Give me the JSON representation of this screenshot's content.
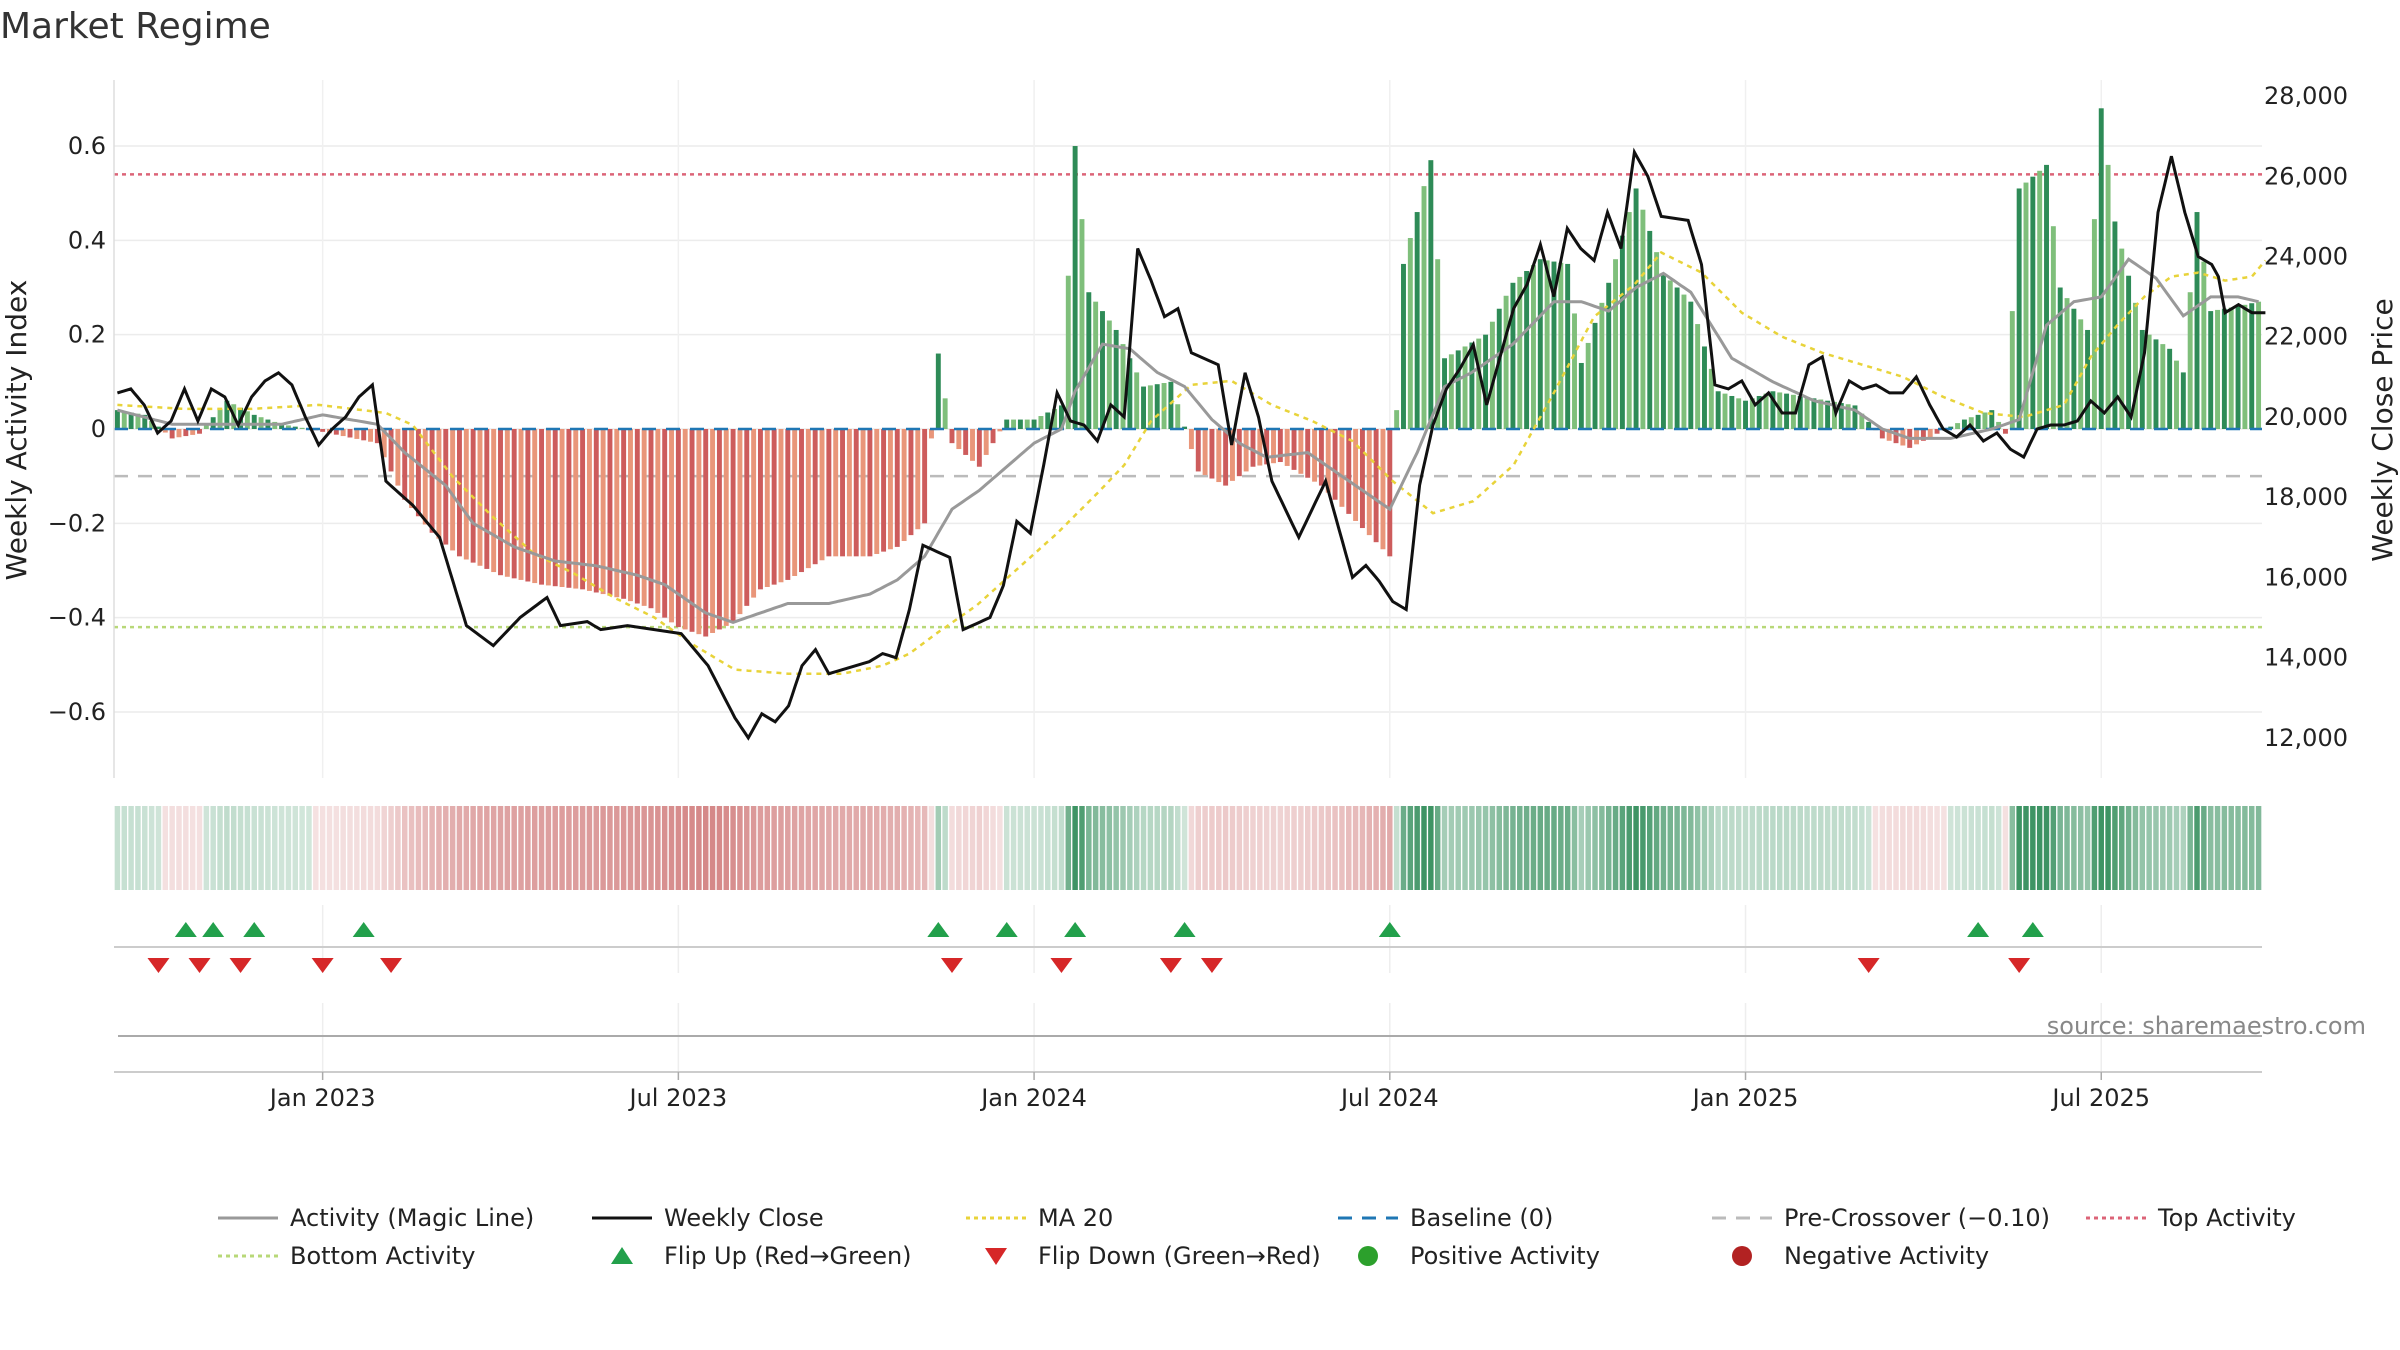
{
  "title": "Market Regime",
  "source": "source: sharemaestro.com",
  "colors": {
    "bar_green_strong": "#2e8b57",
    "bar_green_light": "#7fbf7b",
    "bar_red_strong": "#cd5c5c",
    "bar_red_light": "#e9967a",
    "magic_line": "#999999",
    "weekly_close": "#111111",
    "ma20": "#e8d33a",
    "baseline": "#1f77b4",
    "pre_crossover": "#bbbbbb",
    "top_activity": "#dc6478",
    "bottom_activity": "#b8d878",
    "flip_up": "#22a04b",
    "flip_down": "#d62728",
    "positive": "#2ca02c",
    "negative": "#b22222"
  },
  "legend": [
    {
      "key": "magic",
      "label": "Activity (Magic Line)",
      "kind": "line",
      "color": "#999999",
      "dash": ""
    },
    {
      "key": "close",
      "label": "Weekly Close",
      "kind": "line",
      "color": "#111111",
      "dash": ""
    },
    {
      "key": "ma20",
      "label": "MA 20",
      "kind": "line",
      "color": "#e8d33a",
      "dash": "4,4"
    },
    {
      "key": "baseline",
      "label": "Baseline (0)",
      "kind": "line",
      "color": "#1f77b4",
      "dash": "14,10"
    },
    {
      "key": "pre",
      "label": "Pre-Crossover (−0.10)",
      "kind": "line",
      "color": "#bbbbbb",
      "dash": "14,10"
    },
    {
      "key": "top",
      "label": "Top Activity",
      "kind": "line",
      "color": "#dc6478",
      "dash": "4,4"
    },
    {
      "key": "bottom",
      "label": "Bottom Activity",
      "kind": "line",
      "color": "#b8d878",
      "dash": "4,4"
    },
    {
      "key": "flipup",
      "label": "Flip Up (Red→Green)",
      "kind": "tri-up",
      "color": "#22a04b"
    },
    {
      "key": "flipdown",
      "label": "Flip Down (Green→Red)",
      "kind": "tri-down",
      "color": "#d62728"
    },
    {
      "key": "pos",
      "label": "Positive Activity",
      "kind": "dot",
      "color": "#2ca02c"
    },
    {
      "key": "neg",
      "label": "Negative Activity",
      "kind": "dot",
      "color": "#b22222"
    }
  ],
  "chart_data": {
    "type": "bar",
    "title": "Market Regime",
    "y_left_label": "Weekly Activity Index",
    "y_right_label": "Weekly Close Price",
    "y_left_ticks": [
      {
        "v": 0.6,
        "t": "0.6"
      },
      {
        "v": 0.4,
        "t": "0.4"
      },
      {
        "v": 0.2,
        "t": "0.2"
      },
      {
        "v": 0,
        "t": "0"
      },
      {
        "v": -0.2,
        "t": "−0.2"
      },
      {
        "v": -0.4,
        "t": "−0.4"
      },
      {
        "v": -0.6,
        "t": "−0.6"
      }
    ],
    "y_right_ticks": [
      {
        "v": 28000,
        "t": "28,000"
      },
      {
        "v": 26000,
        "t": "26,000"
      },
      {
        "v": 24000,
        "t": "24,000"
      },
      {
        "v": 22000,
        "t": "22,000"
      },
      {
        "v": 20000,
        "t": "20,000"
      },
      {
        "v": 18000,
        "t": "18,000"
      },
      {
        "v": 16000,
        "t": "16,000"
      },
      {
        "v": 14000,
        "t": "14,000"
      },
      {
        "v": 12000,
        "t": "12,000"
      }
    ],
    "y_left_range": [
      -0.74,
      0.74
    ],
    "y_right_range": [
      11000,
      28400
    ],
    "x_ticks": [
      {
        "v": 30,
        "t": "Jan 2023"
      },
      {
        "v": 82,
        "t": "Jul 2023"
      },
      {
        "v": 134,
        "t": "Jan 2024"
      },
      {
        "v": 186,
        "t": "Jul 2024"
      },
      {
        "v": 238,
        "t": "Jan 2025"
      },
      {
        "v": 290,
        "t": "Jul 2025"
      }
    ],
    "week_count": 314,
    "levels": {
      "top": 0.54,
      "bottom": -0.42,
      "pre_crossover": -0.1,
      "baseline": 0
    },
    "flip_up_weeks": [
      10,
      14,
      20,
      36,
      120,
      130,
      140,
      156,
      186,
      272,
      280
    ],
    "flip_down_weeks": [
      6,
      12,
      18,
      30,
      40,
      122,
      138,
      154,
      160,
      256,
      278
    ],
    "activity_keys": [
      [
        0,
        0.04
      ],
      [
        4,
        0.03
      ],
      [
        8,
        -0.02
      ],
      [
        12,
        -0.01
      ],
      [
        16,
        0.06
      ],
      [
        20,
        0.03
      ],
      [
        24,
        0.01
      ],
      [
        28,
        0
      ],
      [
        38,
        -0.03
      ],
      [
        42,
        -0.15
      ],
      [
        46,
        -0.22
      ],
      [
        50,
        -0.27
      ],
      [
        56,
        -0.31
      ],
      [
        62,
        -0.33
      ],
      [
        68,
        -0.34
      ],
      [
        74,
        -0.36
      ],
      [
        78,
        -0.38
      ],
      [
        82,
        -0.42
      ],
      [
        86,
        -0.44
      ],
      [
        90,
        -0.41
      ],
      [
        94,
        -0.34
      ],
      [
        98,
        -0.32
      ],
      [
        104,
        -0.27
      ],
      [
        110,
        -0.27
      ],
      [
        114,
        -0.25
      ],
      [
        118,
        -0.2
      ],
      [
        120,
        0.16
      ],
      [
        122,
        -0.03
      ],
      [
        126,
        -0.08
      ],
      [
        130,
        0.02
      ],
      [
        134,
        0.02
      ],
      [
        138,
        0.05
      ],
      [
        140,
        0.6
      ],
      [
        142,
        0.29
      ],
      [
        146,
        0.21
      ],
      [
        150,
        0.09
      ],
      [
        154,
        0.1
      ],
      [
        158,
        -0.09
      ],
      [
        162,
        -0.12
      ],
      [
        166,
        -0.08
      ],
      [
        170,
        -0.07
      ],
      [
        176,
        -0.12
      ],
      [
        182,
        -0.21
      ],
      [
        186,
        -0.27
      ],
      [
        188,
        0.35
      ],
      [
        192,
        0.57
      ],
      [
        194,
        0.15
      ],
      [
        200,
        0.2
      ],
      [
        204,
        0.31
      ],
      [
        208,
        0.36
      ],
      [
        212,
        0.35
      ],
      [
        214,
        0.14
      ],
      [
        218,
        0.31
      ],
      [
        222,
        0.51
      ],
      [
        226,
        0.33
      ],
      [
        230,
        0.27
      ],
      [
        234,
        0.08
      ],
      [
        238,
        0.06
      ],
      [
        242,
        0.08
      ],
      [
        246,
        0.07
      ],
      [
        250,
        0.06
      ],
      [
        254,
        0.05
      ],
      [
        258,
        -0.02
      ],
      [
        262,
        -0.04
      ],
      [
        266,
        -0.01
      ],
      [
        270,
        0.02
      ],
      [
        274,
        0.04
      ],
      [
        276,
        -0.01
      ],
      [
        278,
        0.51
      ],
      [
        282,
        0.56
      ],
      [
        284,
        0.3
      ],
      [
        288,
        0.21
      ],
      [
        290,
        0.68
      ],
      [
        292,
        0.44
      ],
      [
        296,
        0.21
      ],
      [
        300,
        0.17
      ],
      [
        302,
        0.12
      ],
      [
        304,
        0.46
      ],
      [
        306,
        0.25
      ],
      [
        310,
        0.26
      ],
      [
        313,
        0.27
      ]
    ],
    "magic_keys": [
      [
        0,
        0.04
      ],
      [
        8,
        0.01
      ],
      [
        16,
        0.01
      ],
      [
        24,
        0.01
      ],
      [
        30,
        0.03
      ],
      [
        38,
        0.01
      ],
      [
        42,
        -0.05
      ],
      [
        48,
        -0.12
      ],
      [
        52,
        -0.2
      ],
      [
        58,
        -0.25
      ],
      [
        64,
        -0.28
      ],
      [
        70,
        -0.29
      ],
      [
        76,
        -0.31
      ],
      [
        80,
        -0.33
      ],
      [
        86,
        -0.39
      ],
      [
        90,
        -0.41
      ],
      [
        94,
        -0.39
      ],
      [
        98,
        -0.37
      ],
      [
        104,
        -0.37
      ],
      [
        110,
        -0.35
      ],
      [
        114,
        -0.32
      ],
      [
        118,
        -0.27
      ],
      [
        122,
        -0.17
      ],
      [
        126,
        -0.13
      ],
      [
        130,
        -0.08
      ],
      [
        134,
        -0.03
      ],
      [
        138,
        0.0
      ],
      [
        140,
        0.08
      ],
      [
        144,
        0.18
      ],
      [
        148,
        0.17
      ],
      [
        152,
        0.12
      ],
      [
        156,
        0.09
      ],
      [
        160,
        0.02
      ],
      [
        164,
        -0.03
      ],
      [
        168,
        -0.06
      ],
      [
        174,
        -0.05
      ],
      [
        180,
        -0.11
      ],
      [
        186,
        -0.17
      ],
      [
        190,
        -0.05
      ],
      [
        194,
        0.09
      ],
      [
        198,
        0.12
      ],
      [
        204,
        0.18
      ],
      [
        210,
        0.27
      ],
      [
        214,
        0.27
      ],
      [
        218,
        0.25
      ],
      [
        222,
        0.3
      ],
      [
        226,
        0.33
      ],
      [
        230,
        0.29
      ],
      [
        236,
        0.15
      ],
      [
        242,
        0.1
      ],
      [
        248,
        0.06
      ],
      [
        254,
        0.04
      ],
      [
        258,
        0.0
      ],
      [
        262,
        -0.02
      ],
      [
        268,
        -0.02
      ],
      [
        274,
        0.0
      ],
      [
        278,
        0.02
      ],
      [
        282,
        0.22
      ],
      [
        286,
        0.27
      ],
      [
        290,
        0.28
      ],
      [
        294,
        0.36
      ],
      [
        298,
        0.32
      ],
      [
        302,
        0.24
      ],
      [
        306,
        0.28
      ],
      [
        310,
        0.28
      ],
      [
        313,
        0.27
      ]
    ],
    "close_keys": [
      [
        0,
        20600
      ],
      [
        2,
        20700
      ],
      [
        4,
        20300
      ],
      [
        6,
        19600
      ],
      [
        8,
        19900
      ],
      [
        10,
        20700
      ],
      [
        12,
        19900
      ],
      [
        14,
        20700
      ],
      [
        16,
        20500
      ],
      [
        18,
        19800
      ],
      [
        20,
        20500
      ],
      [
        22,
        20900
      ],
      [
        24,
        21100
      ],
      [
        26,
        20800
      ],
      [
        28,
        20000
      ],
      [
        30,
        19300
      ],
      [
        32,
        19700
      ],
      [
        34,
        20000
      ],
      [
        36,
        20500
      ],
      [
        38,
        20800
      ],
      [
        40,
        18400
      ],
      [
        44,
        17800
      ],
      [
        48,
        17000
      ],
      [
        52,
        14800
      ],
      [
        56,
        14300
      ],
      [
        60,
        15000
      ],
      [
        64,
        15500
      ],
      [
        66,
        14800
      ],
      [
        70,
        14900
      ],
      [
        72,
        14700
      ],
      [
        76,
        14800
      ],
      [
        80,
        14700
      ],
      [
        84,
        14600
      ],
      [
        88,
        13800
      ],
      [
        92,
        12500
      ],
      [
        94,
        12000
      ],
      [
        96,
        12600
      ],
      [
        98,
        12400
      ],
      [
        100,
        12800
      ],
      [
        102,
        13800
      ],
      [
        104,
        14200
      ],
      [
        106,
        13600
      ],
      [
        108,
        13700
      ],
      [
        112,
        13900
      ],
      [
        114,
        14100
      ],
      [
        116,
        14000
      ],
      [
        118,
        15200
      ],
      [
        120,
        16800
      ],
      [
        124,
        16500
      ],
      [
        126,
        14700
      ],
      [
        130,
        15000
      ],
      [
        132,
        15800
      ],
      [
        134,
        17400
      ],
      [
        136,
        17100
      ],
      [
        138,
        18800
      ],
      [
        140,
        20600
      ],
      [
        142,
        19900
      ],
      [
        144,
        19800
      ],
      [
        146,
        19400
      ],
      [
        148,
        20300
      ],
      [
        150,
        20000
      ],
      [
        152,
        24200
      ],
      [
        154,
        23400
      ],
      [
        156,
        22500
      ],
      [
        158,
        22700
      ],
      [
        160,
        21600
      ],
      [
        164,
        21300
      ],
      [
        166,
        19300
      ],
      [
        168,
        21100
      ],
      [
        170,
        20000
      ],
      [
        172,
        18400
      ],
      [
        176,
        17000
      ],
      [
        180,
        18400
      ],
      [
        184,
        16000
      ],
      [
        186,
        16300
      ],
      [
        188,
        15900
      ],
      [
        190,
        15400
      ],
      [
        192,
        15200
      ],
      [
        194,
        18300
      ],
      [
        196,
        19800
      ],
      [
        198,
        20700
      ],
      [
        200,
        21200
      ],
      [
        202,
        21800
      ],
      [
        204,
        20300
      ],
      [
        208,
        22700
      ],
      [
        210,
        23300
      ],
      [
        212,
        24300
      ],
      [
        214,
        23000
      ],
      [
        216,
        24700
      ],
      [
        218,
        24200
      ],
      [
        220,
        23900
      ],
      [
        222,
        25100
      ],
      [
        224,
        24200
      ],
      [
        226,
        26600
      ],
      [
        228,
        26000
      ],
      [
        230,
        25000
      ],
      [
        234,
        24900
      ],
      [
        236,
        23800
      ],
      [
        238,
        20800
      ],
      [
        240,
        20700
      ],
      [
        242,
        20900
      ],
      [
        244,
        20300
      ],
      [
        246,
        20600
      ],
      [
        248,
        20100
      ],
      [
        250,
        20100
      ],
      [
        252,
        21300
      ],
      [
        254,
        21500
      ],
      [
        256,
        20100
      ],
      [
        258,
        20900
      ],
      [
        260,
        20700
      ],
      [
        262,
        20800
      ],
      [
        264,
        20600
      ],
      [
        266,
        20600
      ],
      [
        268,
        21000
      ],
      [
        270,
        20300
      ],
      [
        272,
        19700
      ],
      [
        274,
        19500
      ],
      [
        276,
        19800
      ],
      [
        278,
        19400
      ],
      [
        280,
        19600
      ],
      [
        282,
        19200
      ],
      [
        284,
        19000
      ],
      [
        286,
        19700
      ],
      [
        288,
        19800
      ],
      [
        290,
        19800
      ],
      [
        292,
        19900
      ],
      [
        294,
        20400
      ],
      [
        296,
        20100
      ],
      [
        298,
        20500
      ],
      [
        300,
        20000
      ],
      [
        302,
        21600
      ],
      [
        304,
        25100
      ],
      [
        306,
        26500
      ],
      [
        308,
        25100
      ],
      [
        310,
        24000
      ],
      [
        312,
        23800
      ],
      [
        313,
        23500
      ],
      [
        314,
        22600
      ],
      [
        316,
        22800
      ],
      [
        318,
        22600
      ],
      [
        320,
        22600
      ]
    ],
    "ma20_keys": [
      [
        0,
        20300
      ],
      [
        10,
        20200
      ],
      [
        20,
        20200
      ],
      [
        30,
        20300
      ],
      [
        40,
        20100
      ],
      [
        44,
        19800
      ],
      [
        50,
        18500
      ],
      [
        56,
        17500
      ],
      [
        62,
        16600
      ],
      [
        68,
        16100
      ],
      [
        74,
        15500
      ],
      [
        80,
        15000
      ],
      [
        86,
        14300
      ],
      [
        92,
        13700
      ],
      [
        100,
        13600
      ],
      [
        108,
        13600
      ],
      [
        114,
        13800
      ],
      [
        118,
        14100
      ],
      [
        122,
        14600
      ],
      [
        128,
        15300
      ],
      [
        134,
        16200
      ],
      [
        140,
        17100
      ],
      [
        146,
        18100
      ],
      [
        150,
        18800
      ],
      [
        154,
        19900
      ],
      [
        160,
        20800
      ],
      [
        166,
        20900
      ],
      [
        172,
        20300
      ],
      [
        178,
        19900
      ],
      [
        184,
        19400
      ],
      [
        190,
        18400
      ],
      [
        196,
        17600
      ],
      [
        202,
        17900
      ],
      [
        208,
        18800
      ],
      [
        214,
        20600
      ],
      [
        220,
        22500
      ],
      [
        226,
        23300
      ],
      [
        230,
        24100
      ],
      [
        236,
        23600
      ],
      [
        242,
        22600
      ],
      [
        248,
        22000
      ],
      [
        254,
        21600
      ],
      [
        260,
        21300
      ],
      [
        266,
        21000
      ],
      [
        272,
        20500
      ],
      [
        278,
        20100
      ],
      [
        284,
        20000
      ],
      [
        290,
        20300
      ],
      [
        294,
        21500
      ],
      [
        298,
        22300
      ],
      [
        302,
        23000
      ],
      [
        306,
        23500
      ],
      [
        310,
        23600
      ],
      [
        314,
        23400
      ],
      [
        318,
        23500
      ],
      [
        320,
        23900
      ]
    ]
  }
}
